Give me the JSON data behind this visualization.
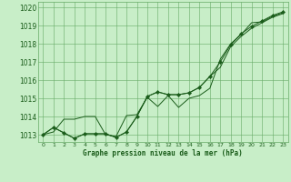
{
  "title": "Graphe pression niveau de la mer (hPa)",
  "bg_color": "#c8eec8",
  "grid_color": "#66aa66",
  "line_color": "#1a5c1a",
  "marker_color": "#1a5c1a",
  "xlim": [
    -0.5,
    23.5
  ],
  "ylim": [
    1012.6,
    1020.3
  ],
  "yticks": [
    1013,
    1014,
    1015,
    1016,
    1017,
    1018,
    1019,
    1020
  ],
  "xticks": [
    0,
    1,
    2,
    3,
    4,
    5,
    6,
    7,
    8,
    9,
    10,
    11,
    12,
    13,
    14,
    15,
    16,
    17,
    18,
    19,
    20,
    21,
    22,
    23
  ],
  "series1": {
    "x": [
      0,
      1,
      2,
      3,
      4,
      5,
      6,
      7,
      8,
      9,
      10,
      11,
      12,
      13,
      14,
      15,
      16,
      17,
      18,
      19,
      20,
      21,
      22,
      23
    ],
    "y": [
      1013.0,
      1013.4,
      1013.1,
      1012.8,
      1013.05,
      1013.05,
      1013.05,
      1012.85,
      1013.15,
      1014.0,
      1015.1,
      1015.35,
      1015.2,
      1015.2,
      1015.3,
      1015.6,
      1016.2,
      1017.0,
      1017.95,
      1018.55,
      1018.95,
      1019.25,
      1019.55,
      1019.75
    ]
  },
  "series2": {
    "x": [
      0,
      1,
      2,
      3,
      4,
      5,
      6,
      7,
      8,
      9,
      10,
      11,
      12,
      13,
      14,
      15,
      16,
      17,
      18,
      19,
      20,
      21,
      22,
      23
    ],
    "y": [
      1013.0,
      1013.15,
      1013.85,
      1013.85,
      1014.0,
      1014.0,
      1013.0,
      1012.9,
      1014.05,
      1014.1,
      1015.05,
      1014.55,
      1015.15,
      1014.5,
      1015.0,
      1015.15,
      1015.55,
      1017.15,
      1018.0,
      1018.5,
      1019.15,
      1019.2,
      1019.5,
      1019.7
    ]
  },
  "series3": {
    "x": [
      0,
      1,
      2,
      3,
      4,
      5,
      6,
      7,
      8,
      9,
      10,
      11,
      12,
      13,
      14,
      15,
      16,
      17,
      18,
      19,
      20,
      21,
      22,
      23
    ],
    "y": [
      1013.0,
      1013.4,
      1013.1,
      1012.8,
      1013.05,
      1013.05,
      1013.05,
      1012.85,
      1013.15,
      1014.0,
      1015.1,
      1015.35,
      1015.2,
      1015.2,
      1015.3,
      1015.6,
      1016.2,
      1016.7,
      1017.85,
      1018.4,
      1018.85,
      1019.15,
      1019.45,
      1019.65
    ]
  }
}
